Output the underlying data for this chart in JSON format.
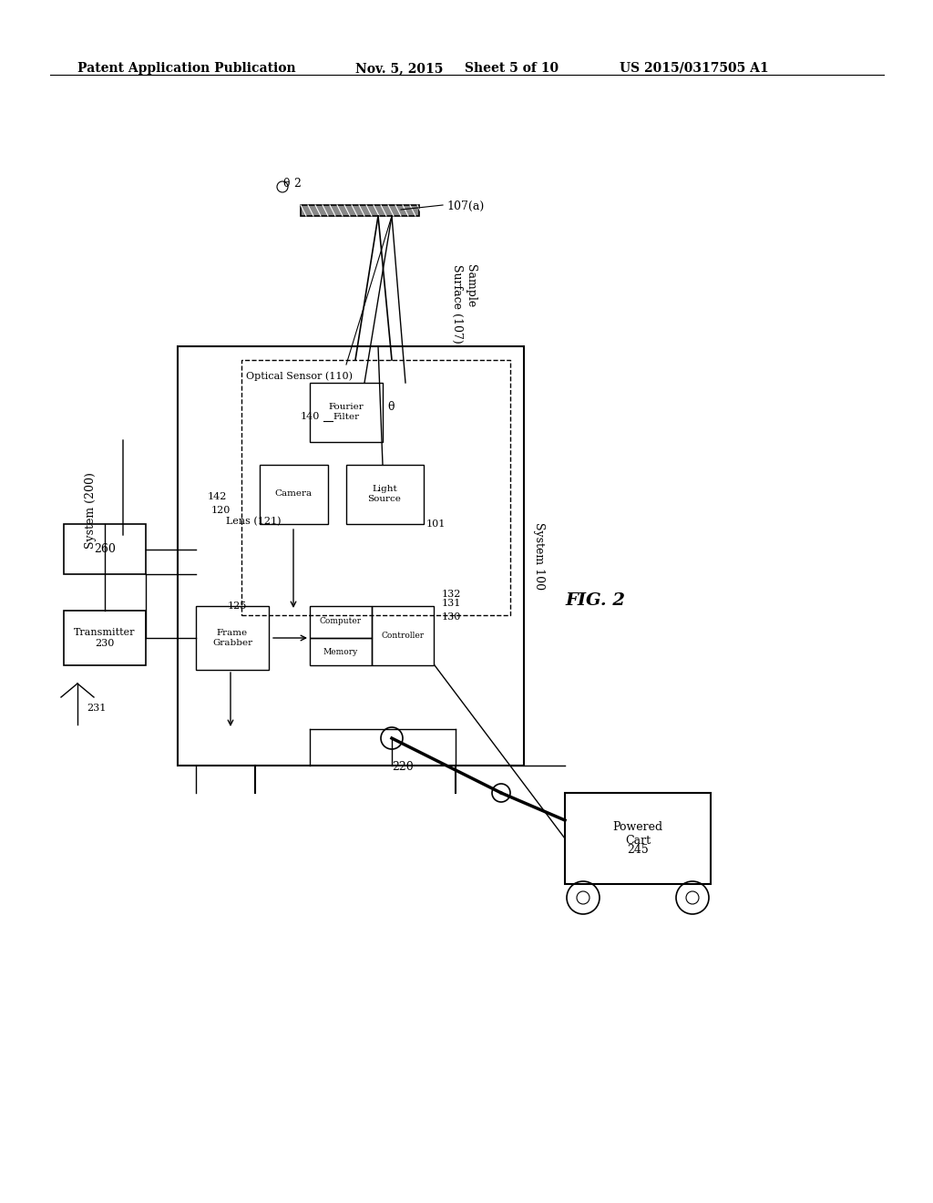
{
  "background_color": "#ffffff",
  "header_text": "Patent Application Publication",
  "header_date": "Nov. 5, 2015",
  "header_sheet": "Sheet 5 of 10",
  "header_patent": "US 2015/0317505 A1",
  "fig_label": "FIG. 2",
  "system200_label": "System (200)",
  "system100_label": "System 100",
  "optical_sensor_label": "Optical Sensor (110)",
  "sample_surface_label": "Sample\nSurface (107)",
  "sample_ref": "107(a)",
  "light_source_label": "Light\nSource",
  "light_source_ref": "101",
  "camera_label": "Camera",
  "fourier_filter_label": "Fourier\nFilter",
  "lens_label": "Lens (121)",
  "lens_ref": "120",
  "lens2_ref": "142",
  "frame_grabber_label": "Frame\nGrabber",
  "frame_grabber_ref": "125",
  "computer_label": "Computer",
  "memory_label": "Memory",
  "memory_ref": "131",
  "controller_label": "Controller",
  "controller_ref": "132",
  "system_block_ref": "130",
  "transmitter_label": "Transmitter\n230",
  "box_260_label": "260",
  "antenna_ref": "231",
  "powered_cart_label": "Powered\nCart",
  "powered_cart_ref": "245",
  "arm_ref": "220",
  "angle_ref_2": "2",
  "angle_ref_theta": "θ"
}
